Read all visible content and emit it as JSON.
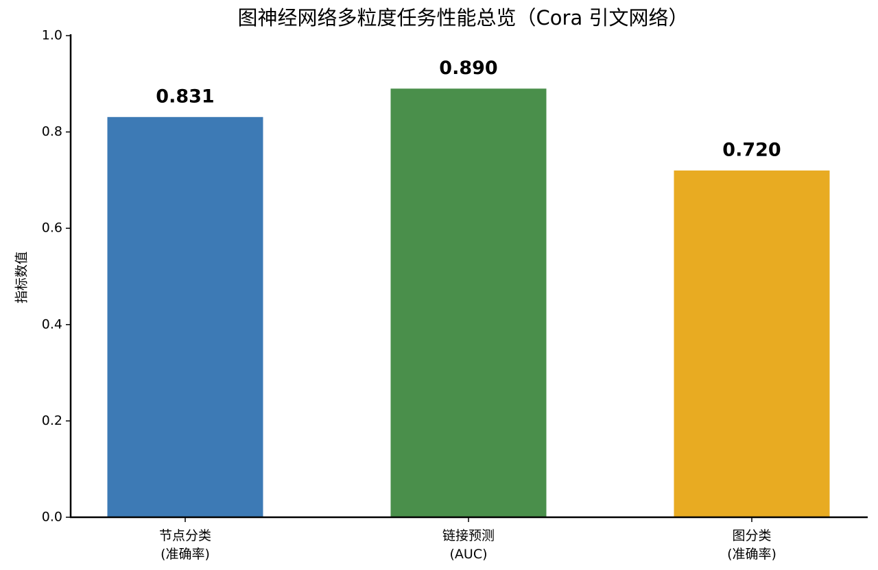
{
  "chart_data": {
    "type": "bar",
    "title": "图神经网络多粒度任务性能总览（Cora 引文网络）",
    "y_label": "指标数值",
    "categories": [
      "节点分类\n(准确率)",
      "链接预测\n(AUC)",
      "图分类\n(准确率)"
    ],
    "values": [
      0.831,
      0.89,
      0.72
    ],
    "value_labels": [
      "0.831",
      "0.890",
      "0.720"
    ],
    "colors": [
      "#3d7ab5",
      "#4a8f4b",
      "#e8ab22"
    ],
    "ylim": [
      0,
      1
    ],
    "yticks": [
      {
        "value": 0,
        "label": "0.0"
      },
      {
        "value": 0.2,
        "label": "0.2"
      },
      {
        "value": 0.4,
        "label": "0.4"
      },
      {
        "value": 0.6,
        "label": "0.6"
      },
      {
        "value": 0.8,
        "label": "0.8"
      },
      {
        "value": 1,
        "label": "1.0"
      }
    ],
    "grid": false
  }
}
